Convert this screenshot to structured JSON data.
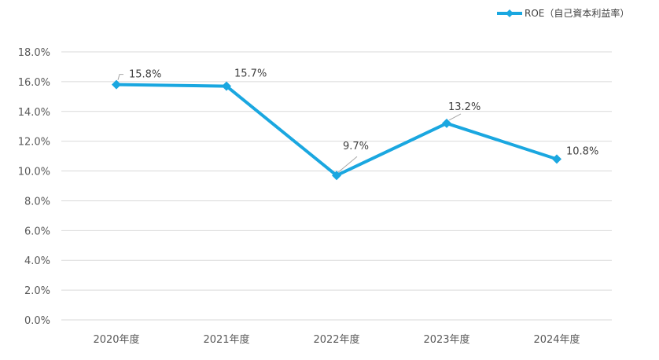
{
  "chart_data": {
    "type": "line",
    "categories": [
      "2020年度",
      "2021年度",
      "2022年度",
      "2023年度",
      "2024年度"
    ],
    "series": [
      {
        "name": "ROE（自己資本利益率）",
        "values": [
          15.8,
          15.7,
          9.7,
          13.2,
          10.8
        ],
        "labels": [
          "15.8%",
          "15.7%",
          "9.7%",
          "13.2%",
          "10.8%"
        ],
        "color": "#1aa7e0",
        "marker": "diamond"
      }
    ],
    "y_ticks": [
      "0.0%",
      "2.0%",
      "4.0%",
      "6.0%",
      "8.0%",
      "10.0%",
      "12.0%",
      "14.0%",
      "16.0%",
      "18.0%"
    ],
    "ylim": [
      0,
      18
    ],
    "grid": true,
    "legend_position": "top-right"
  }
}
